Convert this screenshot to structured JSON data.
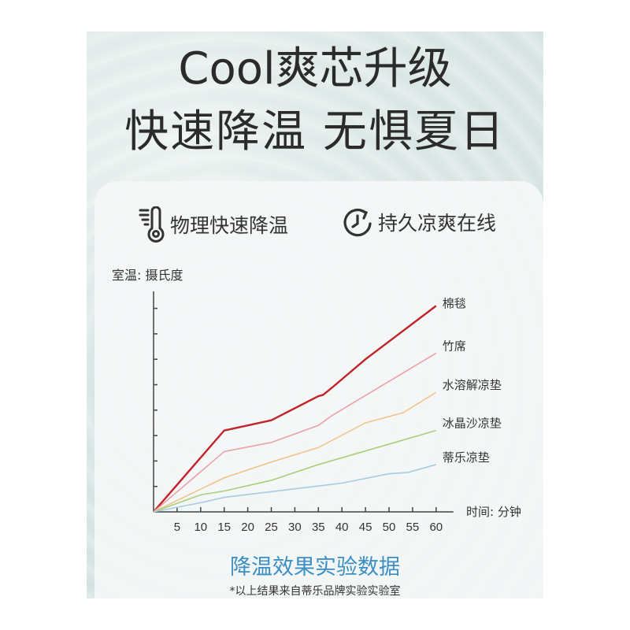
{
  "headline": {
    "line1": "Cool爽芯升级",
    "line2": "快速降温 无惧夏日"
  },
  "features": [
    {
      "icon": "thermometer-icon",
      "label": "物理快速降温"
    },
    {
      "icon": "clock-refresh-icon",
      "label": "持久凉爽在线"
    }
  ],
  "chart_data": {
    "type": "line",
    "title": "降温效果实验数据",
    "ylabel": "室温: 摄氏度",
    "xlabel": "时间: 分钟",
    "x_ticks": [
      5,
      10,
      15,
      20,
      25,
      30,
      35,
      40,
      45,
      50,
      55,
      60
    ],
    "xlim": [
      0,
      62
    ],
    "ylim": [
      0,
      8.6
    ],
    "y_tick_count": 8,
    "y_tick_labels": "none",
    "grid": false,
    "legend": "inline-right",
    "series": [
      {
        "name": "棉毯",
        "color": "#c0232a",
        "points": [
          [
            0,
            0
          ],
          [
            15,
            3.2
          ],
          [
            25,
            3.6
          ],
          [
            35,
            4.55
          ],
          [
            36,
            4.6
          ],
          [
            38,
            4.9
          ],
          [
            45,
            6.0
          ],
          [
            60,
            8.1
          ]
        ]
      },
      {
        "name": "竹席",
        "color": "#e9a2aa",
        "points": [
          [
            0,
            0
          ],
          [
            15,
            2.37
          ],
          [
            25,
            2.73
          ],
          [
            35,
            3.4
          ],
          [
            38,
            3.8
          ],
          [
            60,
            6.24
          ]
        ]
      },
      {
        "name": "水溶解凉垫",
        "color": "#f1c48e",
        "points": [
          [
            0,
            0
          ],
          [
            15,
            1.34
          ],
          [
            25,
            1.96
          ],
          [
            35,
            2.53
          ],
          [
            45,
            3.5
          ],
          [
            53,
            3.9
          ],
          [
            60,
            4.7
          ]
        ]
      },
      {
        "name": "冰晶沙凉垫",
        "color": "#a8d07a",
        "points": [
          [
            0,
            0
          ],
          [
            10,
            0.67
          ],
          [
            15,
            0.82
          ],
          [
            25,
            1.24
          ],
          [
            35,
            1.86
          ],
          [
            60,
            3.2
          ]
        ]
      },
      {
        "name": "蒂乐凉垫",
        "color": "#a8cbe0",
        "points": [
          [
            0,
            0
          ],
          [
            10,
            0.36
          ],
          [
            15,
            0.57
          ],
          [
            40,
            1.13
          ],
          [
            50,
            1.5
          ],
          [
            54,
            1.55
          ],
          [
            60,
            1.86
          ]
        ]
      }
    ]
  },
  "footnote": "*以上结果来自蒂乐品牌实验实验室"
}
